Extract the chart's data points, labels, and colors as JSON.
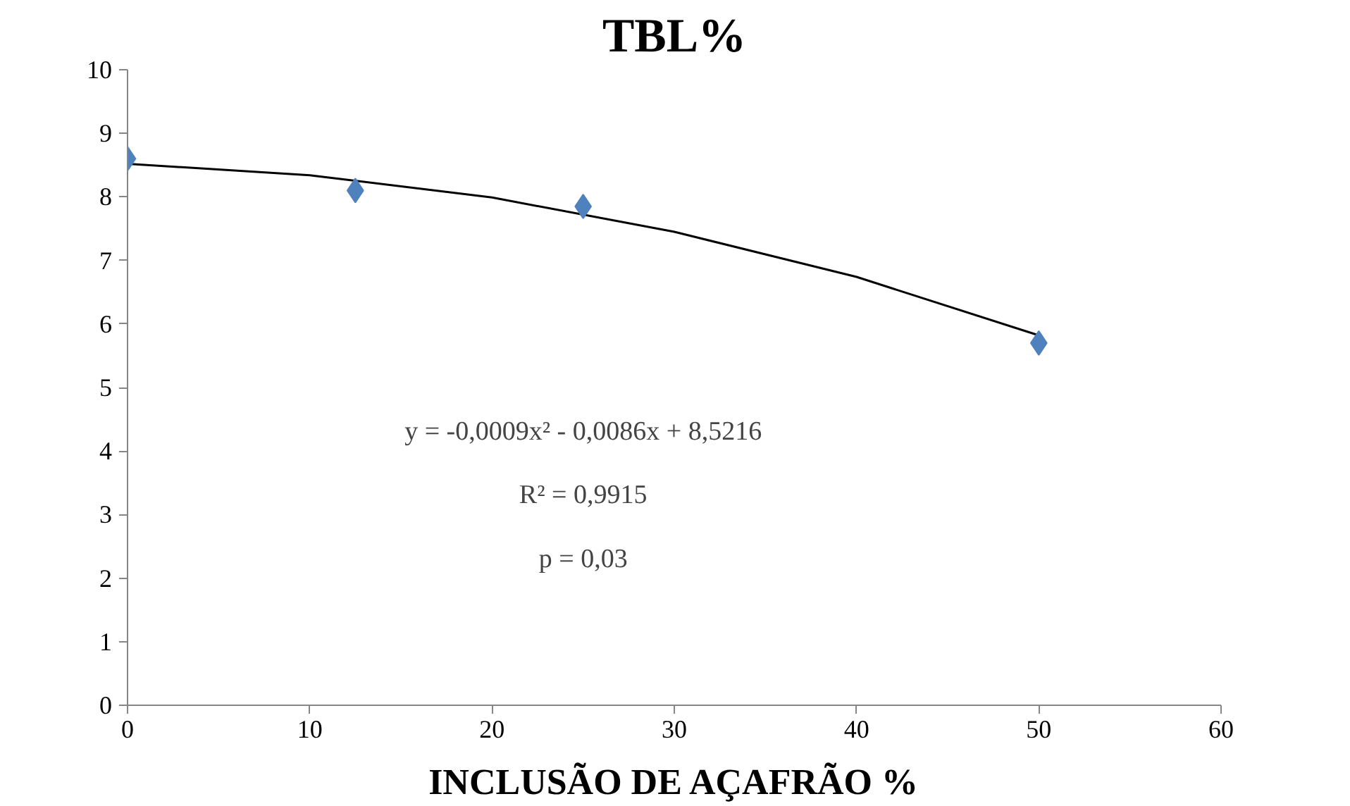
{
  "chart_data": {
    "type": "scatter",
    "title": "TBL%",
    "xlabel": "INCLUSÃO DE AÇAFRÃO %",
    "xlim": [
      0,
      60
    ],
    "xticks": [
      0,
      10,
      20,
      30,
      40,
      50,
      60
    ],
    "ylim": [
      0,
      10
    ],
    "yticks": [
      0,
      1,
      2,
      3,
      4,
      5,
      6,
      7,
      8,
      9,
      10
    ],
    "grid": false,
    "series": [
      {
        "color": "#4f81bd",
        "marker": "diamond",
        "x": [
          0,
          12.5,
          25,
          50
        ],
        "values": [
          8.6,
          8.1,
          7.85,
          5.7
        ]
      },
      {
        "type": "line",
        "color": "#000000",
        "marker": "none",
        "line_style": "solid",
        "x": [
          0,
          10,
          20,
          30,
          40,
          50
        ],
        "values": [
          8.52,
          8.34,
          7.99,
          7.45,
          6.74,
          5.82
        ]
      }
    ],
    "annotations": [
      "y = -0,0009x² - 0,0086x + 8,5216",
      "R² = 0,9915",
      "p = 0,03"
    ]
  }
}
